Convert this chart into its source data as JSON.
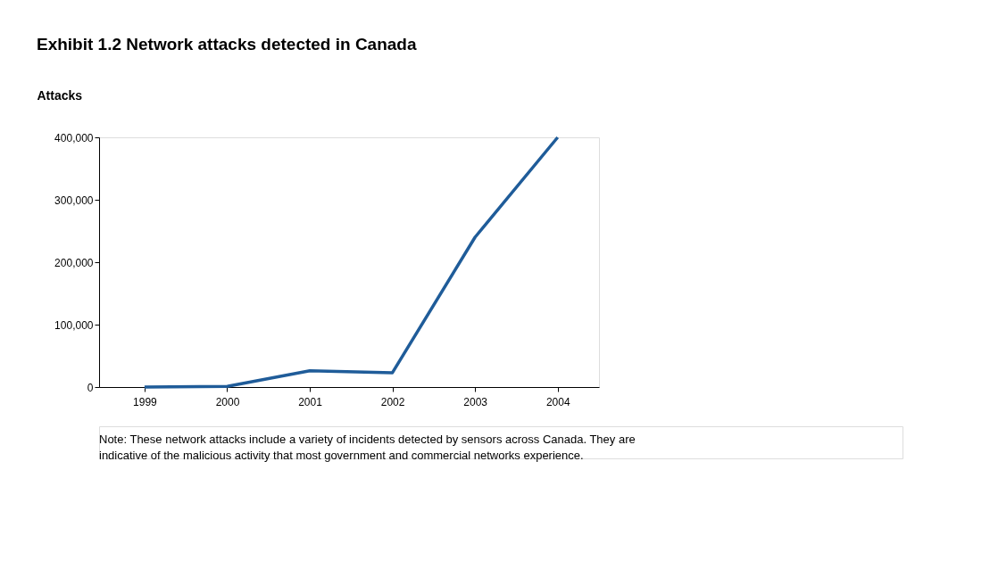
{
  "chart_data": {
    "type": "line",
    "title": "Exhibit 1.2 Network attacks detected in Canada",
    "ylabel": "Attacks",
    "categories": [
      "1999",
      "2000",
      "2001",
      "2002",
      "2003",
      "2004"
    ],
    "series": [
      {
        "color": "#1f5c99",
        "values": [
          0,
          1000,
          26000,
          23000,
          240000,
          400000
        ]
      }
    ],
    "ylim": [
      0,
      400000
    ],
    "yticks": [
      {
        "value": 0,
        "label": "0"
      },
      {
        "value": 100000,
        "label": "100,000"
      },
      {
        "value": 200000,
        "label": "200,000"
      },
      {
        "value": 300000,
        "label": "300,000"
      },
      {
        "value": 400000,
        "label": "400,000"
      }
    ],
    "grid": false,
    "marker": "none",
    "line_style": "solid",
    "annotations": [
      "Note:  These network attacks include a variety of incidents detected by sensors across Canada. They are indicative of the malicious activity that most government and commercial networks experience."
    ]
  }
}
